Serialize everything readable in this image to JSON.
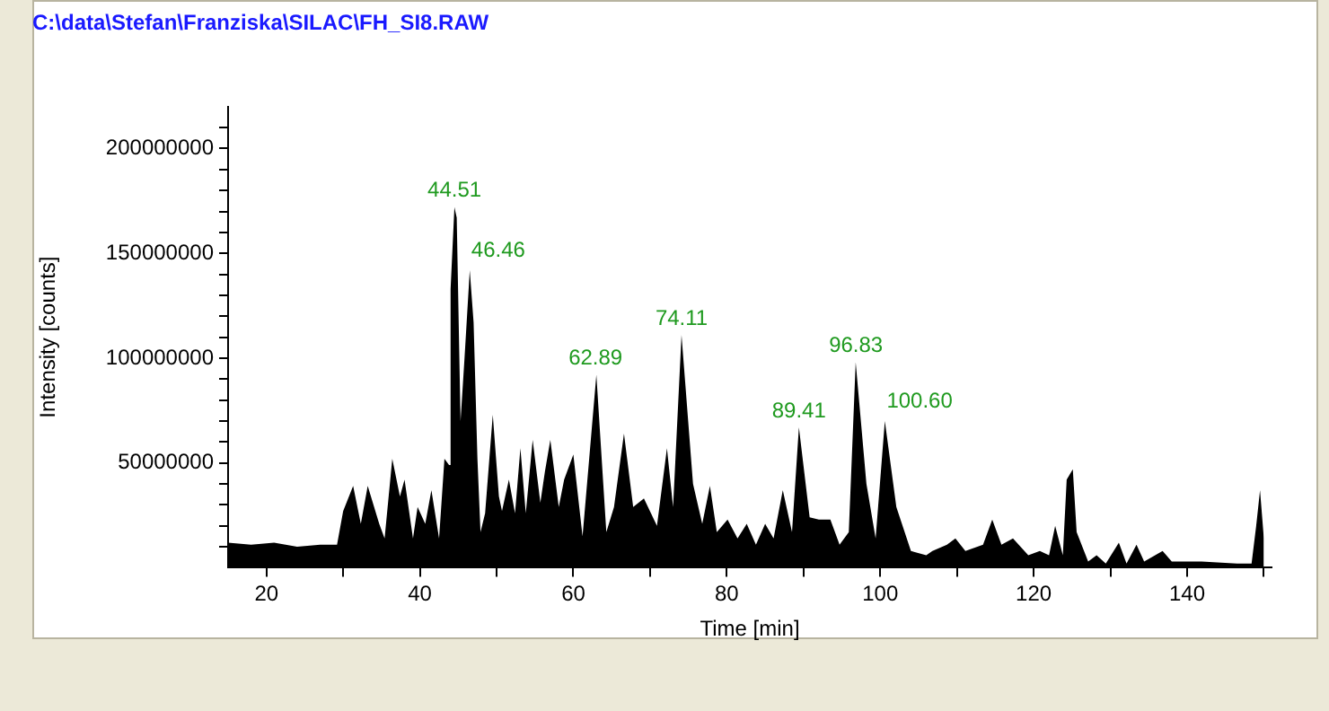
{
  "chart_data": {
    "type": "area",
    "title": "C:\\data\\Stefan\\Franziska\\SILAC\\FH_SI8.RAW",
    "xlabel": "Time [min]",
    "ylabel": "Intensity [counts]",
    "xlim": [
      15,
      151
    ],
    "ylim": [
      0,
      220000000
    ],
    "xticks": [
      20,
      {
        "value": 30,
        "label": null
      },
      40,
      {
        "value": 50,
        "label": null
      },
      60,
      {
        "value": 70,
        "label": null
      },
      80,
      {
        "value": 90,
        "label": null
      },
      100,
      {
        "value": 110,
        "label": null
      },
      120,
      {
        "value": 130,
        "label": null
      },
      140,
      {
        "value": 150,
        "label": null
      }
    ],
    "yticks": [
      {
        "value": 10000000,
        "label": null
      },
      {
        "value": 20000000,
        "label": null
      },
      {
        "value": 30000000,
        "label": null
      },
      {
        "value": 40000000,
        "label": null
      },
      50000000,
      {
        "value": 60000000,
        "label": null
      },
      {
        "value": 70000000,
        "label": null
      },
      {
        "value": 80000000,
        "label": null
      },
      {
        "value": 90000000,
        "label": null
      },
      100000000,
      {
        "value": 110000000,
        "label": null
      },
      {
        "value": 120000000,
        "label": null
      },
      {
        "value": 130000000,
        "label": null
      },
      {
        "value": 140000000,
        "label": null
      },
      150000000,
      {
        "value": 160000000,
        "label": null
      },
      {
        "value": 170000000,
        "label": null
      },
      {
        "value": 180000000,
        "label": null
      },
      {
        "value": 190000000,
        "label": null
      },
      200000000,
      {
        "value": 210000000,
        "label": null
      }
    ],
    "grid": false,
    "legend": false,
    "marker": "none",
    "series": [
      {
        "color": "#000000",
        "x": [
          15,
          18,
          21,
          24,
          27,
          29.2,
          30.0,
          31.3,
          32.3,
          33.2,
          34.7,
          35.4,
          36.4,
          37.4,
          38.0,
          39.1,
          39.7,
          40.7,
          41.5,
          42.5,
          43.2,
          43.8,
          44.0,
          44.5,
          44.8,
          45.3,
          45.8,
          46.5,
          47.0,
          47.5,
          47.9,
          48.5,
          49.5,
          50.3,
          50.7,
          51.6,
          52.4,
          53.1,
          53.8,
          54.7,
          55.7,
          56.3,
          57.0,
          58.1,
          58.8,
          60.0,
          61.2,
          63.0,
          64.3,
          65.3,
          66.6,
          67.8,
          69.2,
          70.9,
          72.2,
          73.0,
          74.1,
          75.6,
          76.8,
          77.8,
          78.7,
          80.1,
          81.4,
          82.6,
          83.8,
          85.0,
          86.1,
          87.3,
          88.5,
          89.4,
          90.8,
          92.0,
          93.5,
          94.7,
          95.9,
          96.8,
          98.2,
          99.4,
          100.6,
          102.1,
          104.0,
          106.0,
          106.8,
          108.7,
          109.8,
          111.1,
          113.4,
          114.6,
          115.8,
          117.3,
          119.3,
          120.8,
          122.0,
          122.8,
          123.8,
          124.3,
          125.1,
          125.6,
          127.1,
          128.2,
          129.4,
          131.1,
          132.1,
          133.4,
          134.4,
          136.8,
          138.0,
          141.9,
          146.5,
          148.4,
          149.0,
          149.5,
          150.0
        ],
        "values": [
          12000000,
          11000000,
          12000000,
          10000000,
          11000000,
          11000000,
          27000000,
          39000000,
          21000000,
          39000000,
          21000000,
          14000000,
          52000000,
          34000000,
          42000000,
          14000000,
          29000000,
          21000000,
          37000000,
          14000000,
          52000000,
          49000000,
          133000000,
          172000000,
          167000000,
          70000000,
          99000000,
          142000000,
          117000000,
          52000000,
          17000000,
          26000000,
          73000000,
          34000000,
          27000000,
          42000000,
          26000000,
          57000000,
          26000000,
          61000000,
          31000000,
          46000000,
          61000000,
          29000000,
          42000000,
          54000000,
          15000000,
          92000000,
          17000000,
          29000000,
          64000000,
          29000000,
          33000000,
          20000000,
          57000000,
          29000000,
          111000000,
          40000000,
          21000000,
          39000000,
          17000000,
          23000000,
          14000000,
          21000000,
          11000000,
          21000000,
          14000000,
          37000000,
          17000000,
          67000000,
          24000000,
          23000000,
          23000000,
          11000000,
          17000000,
          98000000,
          40000000,
          14000000,
          70000000,
          29000000,
          8000000,
          6000000,
          8000000,
          11000000,
          14000000,
          8000000,
          11000000,
          23000000,
          11000000,
          14000000,
          6000000,
          8000000,
          6000000,
          20000000,
          6000000,
          42000000,
          47000000,
          17000000,
          3000000,
          6000000,
          2000000,
          12000000,
          2000000,
          11000000,
          3000000,
          8000000,
          3000000,
          3000000,
          2000000,
          2000000,
          20000000,
          37000000,
          14000000
        ]
      }
    ],
    "annotations": [
      {
        "text": "44.51",
        "x": 44.51,
        "y": 172000000
      },
      {
        "text": "46.46",
        "x": 46.46,
        "y": 142000000
      },
      {
        "text": "62.89",
        "x": 62.89,
        "y": 92000000
      },
      {
        "text": "74.11",
        "x": 74.11,
        "y": 111000000
      },
      {
        "text": "89.41",
        "x": 89.41,
        "y": 67000000
      },
      {
        "text": "96.83",
        "x": 96.83,
        "y": 98000000
      },
      {
        "text": "100.60",
        "x": 100.6,
        "y": 70000000
      }
    ]
  }
}
